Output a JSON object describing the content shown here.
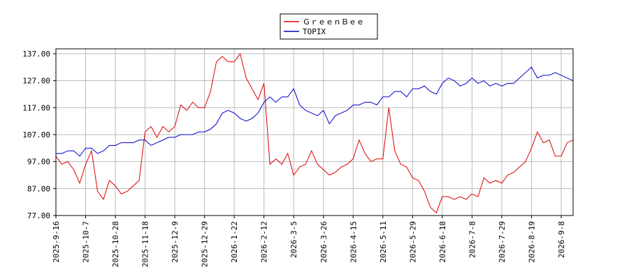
{
  "chart_data": {
    "type": "line",
    "categories": [
      "2025-9-16",
      null,
      null,
      null,
      null,
      "2025-10-7",
      null,
      null,
      null,
      null,
      "2025-10-28",
      null,
      null,
      null,
      null,
      "2025-11-18",
      null,
      null,
      null,
      null,
      "2025-12-9",
      null,
      null,
      null,
      null,
      "2025-12-29",
      null,
      null,
      null,
      null,
      "2026-1-22",
      null,
      null,
      null,
      null,
      "2026-2-12",
      null,
      null,
      null,
      null,
      "2026-3-5",
      null,
      null,
      null,
      null,
      "2026-3-26",
      null,
      null,
      null,
      null,
      "2026-4-15",
      null,
      null,
      null,
      null,
      "2026-5-11",
      null,
      null,
      null,
      null,
      "2026-5-29",
      null,
      null,
      null,
      null,
      "2026-6-18",
      null,
      null,
      null,
      null,
      "2026-7-8",
      null,
      null,
      null,
      null,
      "2026-7-29",
      null,
      null,
      null,
      null,
      "2026-8-19",
      null,
      null,
      null,
      null,
      "2026-9-8",
      null,
      null
    ],
    "series": [
      {
        "name": "ＧｒｅｅｎＢｅｅ",
        "color": "#dd0000",
        "values": [
          99,
          96,
          97,
          94,
          89,
          96,
          101,
          86,
          83,
          90,
          88,
          85,
          86,
          88,
          90,
          108,
          110,
          106,
          110,
          108,
          110,
          118,
          116,
          119,
          117,
          117,
          123,
          134,
          136,
          134,
          134,
          137,
          128,
          124,
          120,
          126,
          96,
          98,
          96,
          100,
          92,
          95,
          96,
          101,
          96,
          94,
          92,
          93,
          95,
          96,
          98,
          105,
          100,
          97,
          98,
          98,
          117,
          101,
          96,
          95,
          91,
          90,
          86,
          80,
          78,
          84,
          84,
          83,
          84,
          83,
          85,
          84,
          91,
          89,
          90,
          89,
          92,
          93,
          95,
          97,
          102,
          108,
          104,
          105,
          99,
          99,
          104,
          105
        ]
      },
      {
        "name": "TOPIX",
        "color": "#0000cc",
        "values": [
          100,
          100,
          101,
          101,
          99,
          102,
          102,
          100,
          101,
          103,
          103,
          104,
          104,
          104,
          105,
          105,
          103,
          104,
          105,
          106,
          106,
          107,
          107,
          107,
          108,
          108,
          109,
          111,
          115,
          116,
          115,
          113,
          112,
          113,
          115,
          119,
          121,
          119,
          121,
          121,
          124,
          118,
          116,
          115,
          114,
          116,
          111,
          114,
          115,
          116,
          118,
          118,
          119,
          119,
          118,
          121,
          121,
          123,
          123,
          121,
          124,
          124,
          125,
          123,
          122,
          126,
          128,
          127,
          125,
          126,
          128,
          126,
          127,
          125,
          126,
          125,
          126,
          126,
          128,
          130,
          132,
          128,
          129,
          129,
          130,
          129,
          128,
          127
        ]
      }
    ],
    "ylim": [
      77,
      137
    ],
    "yticks": [
      {
        "value": 77,
        "label": "77.00"
      },
      {
        "value": 87,
        "label": "87.00"
      },
      {
        "value": 97,
        "label": "97.00"
      },
      {
        "value": 107,
        "label": "107.00"
      },
      {
        "value": 117,
        "label": "117.00"
      },
      {
        "value": 127,
        "label": "127.00"
      },
      {
        "value": 137,
        "label": "137.00"
      }
    ],
    "grid": true,
    "legend": "top"
  }
}
